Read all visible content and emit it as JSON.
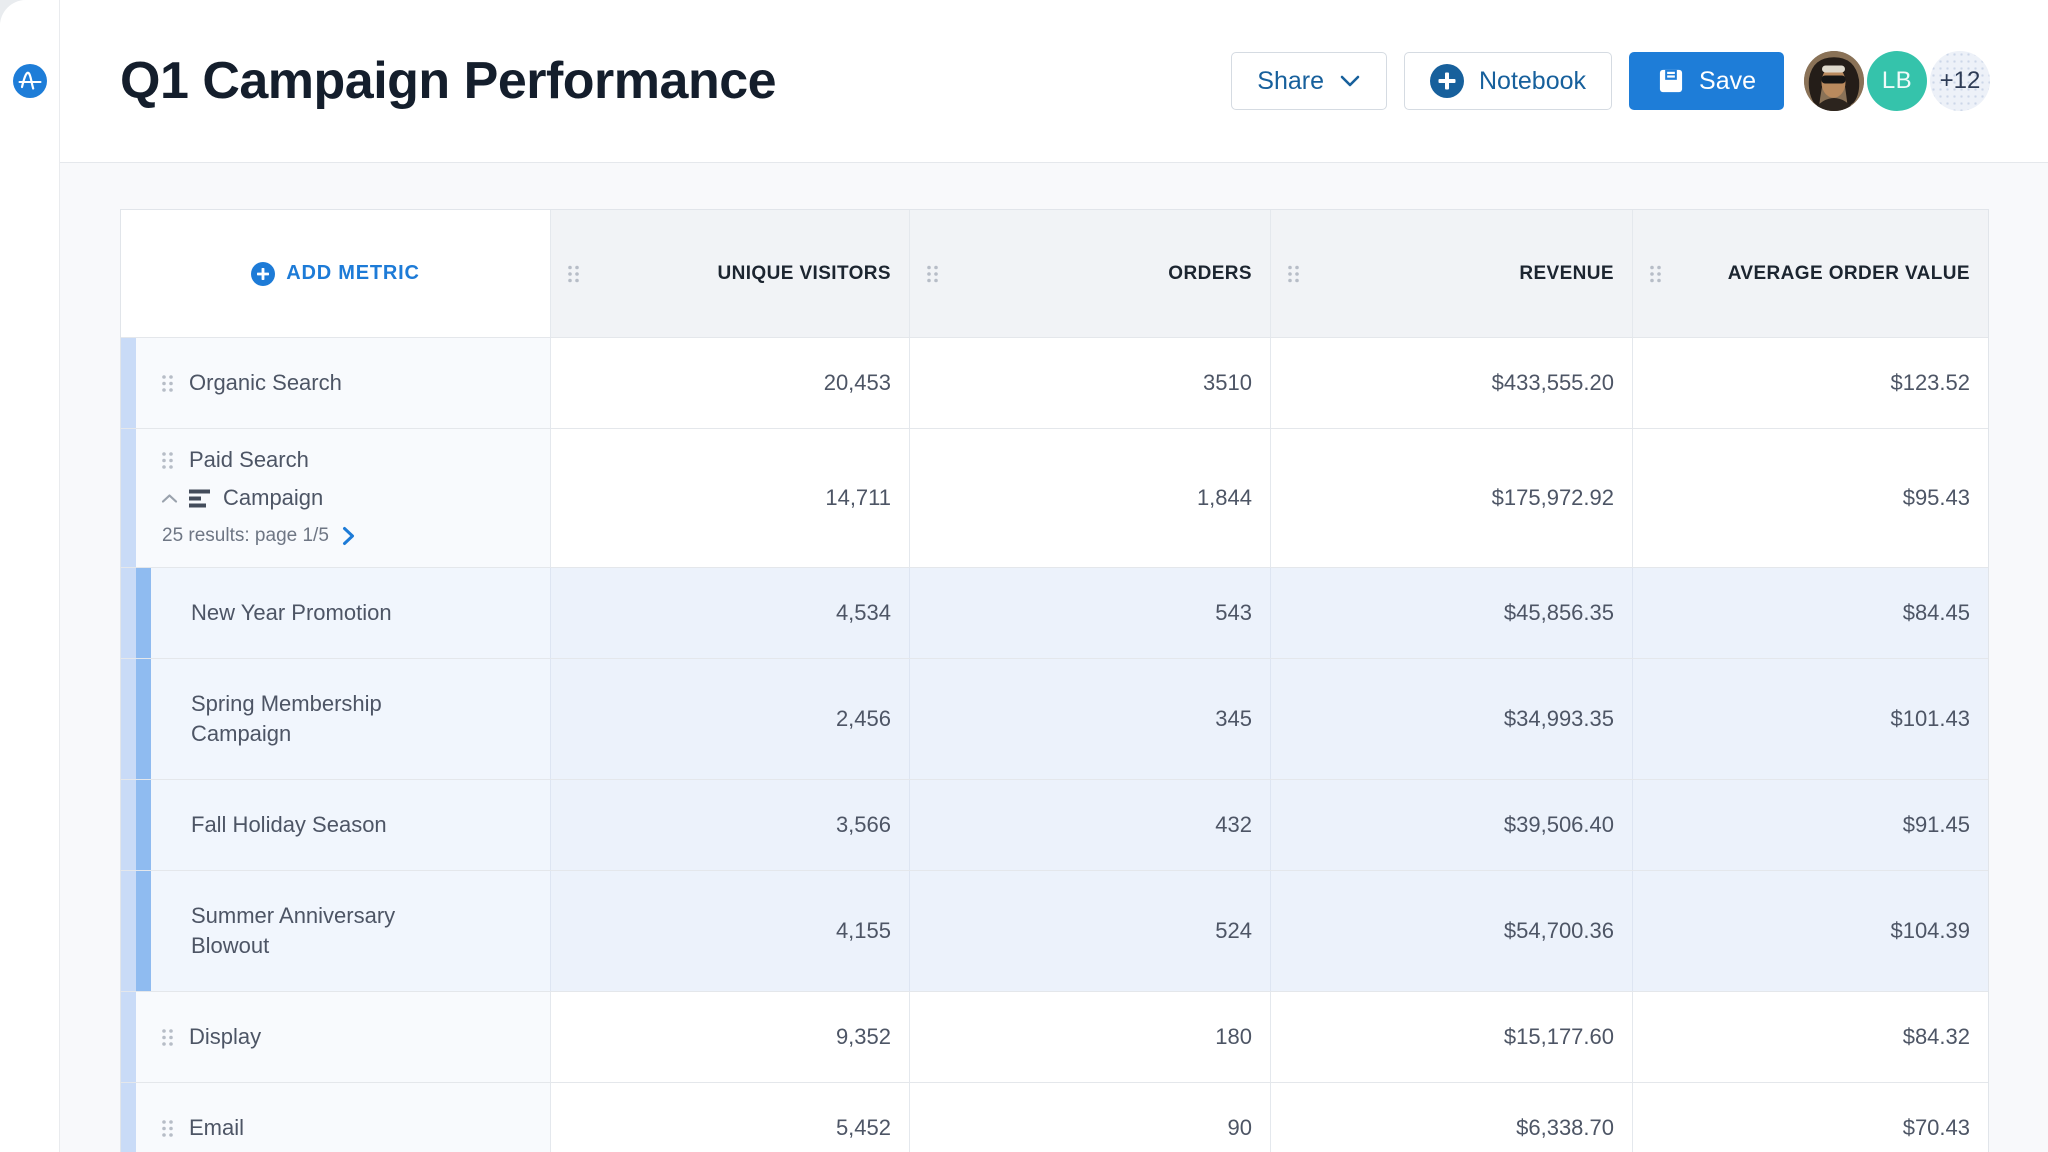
{
  "sidebar": {
    "logo_icon": "amplitude-logo"
  },
  "header": {
    "title": "Q1 Campaign Performance",
    "share_label": "Share",
    "notebook_label": "Notebook",
    "save_label": "Save",
    "avatars": {
      "user_initials": "LB",
      "overflow_count": "+12"
    }
  },
  "table": {
    "add_metric_label": "ADD METRIC",
    "columns": [
      "UNIQUE VISITORS",
      "ORDERS",
      "REVENUE",
      "AVERAGE ORDER VALUE"
    ],
    "rows": [
      {
        "type": "parent",
        "label": "Organic Search",
        "values": [
          "20,453",
          "3510",
          "$433,555.20",
          "$123.52"
        ]
      },
      {
        "type": "parent-expanded",
        "label_line1": "Paid Search",
        "label_line2": "Campaign",
        "pagination": "25 results: page 1/5",
        "values": [
          "14,711",
          "1,844",
          "$175,972.92",
          "$95.43"
        ]
      },
      {
        "type": "child",
        "label": "New Year Promotion",
        "values": [
          "4,534",
          "543",
          "$45,856.35",
          "$84.45"
        ]
      },
      {
        "type": "child",
        "label": "Spring Membership Campaign",
        "values": [
          "2,456",
          "345",
          "$34,993.35",
          "$101.43"
        ]
      },
      {
        "type": "child",
        "label": "Fall Holiday Season",
        "values": [
          "3,566",
          "432",
          "$39,506.40",
          "$91.45"
        ]
      },
      {
        "type": "child",
        "label": "Summer Anniversary Blowout",
        "values": [
          "4,155",
          "524",
          "$54,700.36",
          "$104.39"
        ]
      },
      {
        "type": "parent",
        "label": "Display",
        "values": [
          "9,352",
          "180",
          "$15,177.60",
          "$84.32"
        ]
      },
      {
        "type": "parent",
        "label": "Email",
        "values": [
          "5,452",
          "90",
          "$6,338.70",
          "$70.43"
        ]
      }
    ]
  },
  "icons": {
    "logo": "amplitude-wave-icon",
    "share_chevron": "chevron-down-icon",
    "notebook_plus": "plus-circle-icon",
    "save": "floppy-disk-icon",
    "add_metric_plus": "plus-circle-icon",
    "column_drag": "drag-handle-icon",
    "row_drag": "drag-handle-icon",
    "collapse": "chevron-up-icon",
    "breakdown": "bars-icon",
    "next_page": "chevron-right-icon"
  },
  "colors": {
    "primary_blue": "#1e7dd8",
    "deep_blue": "#17609c",
    "title_navy": "#141e2c",
    "body_gray": "#4d5565",
    "muted_gray": "#6e7684",
    "teal_avatar": "#35c3ab",
    "accent_bar_light": "#c9dbf7",
    "accent_bar_medium": "#8fbbf0",
    "child_row_bg": "#ecf2fb",
    "header_cell_bg": "#f1f3f6"
  }
}
